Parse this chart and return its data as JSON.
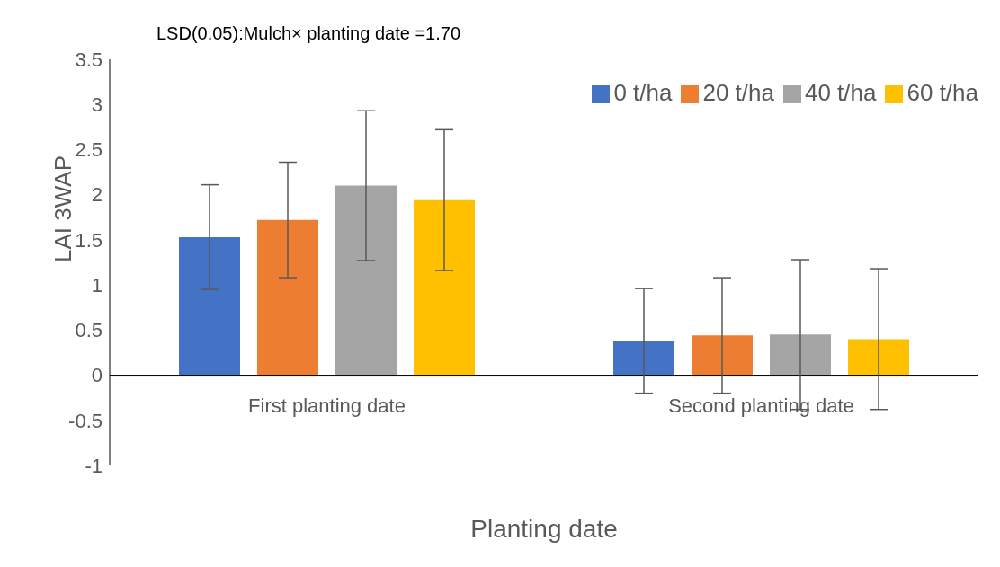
{
  "chart_data": {
    "type": "bar",
    "xlabel": "Planting date",
    "ylabel": "LAI 3WAP",
    "annotations": [
      "LSD(0.05):Mulch× planting date =1.70"
    ],
    "categories": [
      "First planting date",
      "Second planting date"
    ],
    "series": [
      {
        "name": "0 t/ha",
        "color": "#4472c4",
        "values": [
          1.53,
          0.38
        ],
        "errors": [
          0.58,
          0.58
        ]
      },
      {
        "name": "20 t/ha",
        "color": "#ed7d31",
        "values": [
          1.72,
          0.44
        ],
        "errors": [
          0.64,
          0.64
        ]
      },
      {
        "name": "40 t/ha",
        "color": "#a5a5a5",
        "values": [
          2.1,
          0.45
        ],
        "errors": [
          0.83,
          0.83
        ]
      },
      {
        "name": "60 t/ha",
        "color": "#ffc000",
        "values": [
          1.94,
          0.4
        ],
        "errors": [
          0.78,
          0.78
        ]
      }
    ],
    "ylim": [
      -1,
      3.5
    ],
    "yticks": [
      -1,
      -0.5,
      0,
      0.5,
      1,
      1.5,
      2,
      2.5,
      3,
      3.5
    ],
    "grid": false,
    "legend": "top right"
  }
}
